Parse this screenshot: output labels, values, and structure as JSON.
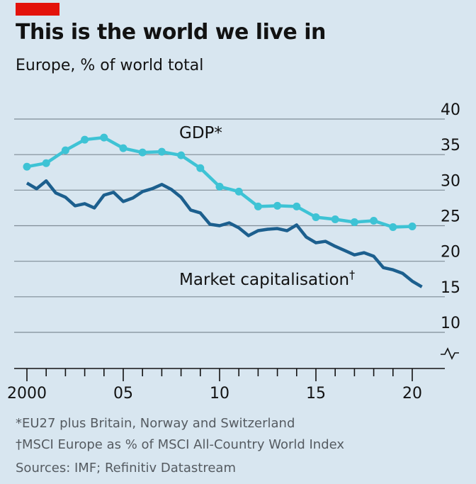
{
  "header": {
    "title": "This is the world we live in",
    "subtitle": "Europe, % of world total"
  },
  "footnotes": [
    "*EU27 plus Britain, Norway and Switzerland",
    "†MSCI Europe as % of MSCI All-Country World Index",
    "Sources: IMF; Refinitiv Datastream"
  ],
  "colors": {
    "background": "#d8e6f0",
    "gdp": "#3ec3d5",
    "market_cap": "#1c5f8e",
    "grid": "#7f8c96",
    "brand_red": "#e3120b"
  },
  "chart_data": {
    "type": "line",
    "title": "This is the world we live in",
    "subtitle": "Europe, % of world total",
    "xlim": [
      2000,
      2020
    ],
    "ylim": [
      5,
      40
    ],
    "y_axis_side": "right",
    "y_axis_break": true,
    "grid": true,
    "x_ticks": [
      {
        "value": 2000,
        "label": "2000"
      },
      {
        "value": 2005,
        "label": "05"
      },
      {
        "value": 2010,
        "label": "10"
      },
      {
        "value": 2015,
        "label": "15"
      },
      {
        "value": 2020,
        "label": "20"
      }
    ],
    "y_ticks": [
      10,
      15,
      20,
      25,
      30,
      35,
      40
    ],
    "series": [
      {
        "name": "GDP*",
        "style": "line-with-markers",
        "x": [
          2000,
          2001,
          2002,
          2003,
          2004,
          2005,
          2006,
          2007,
          2008,
          2009,
          2010,
          2011,
          2012,
          2013,
          2014,
          2015,
          2016,
          2017,
          2018,
          2019,
          2020
        ],
        "y": [
          33.3,
          33.8,
          35.6,
          37.1,
          37.4,
          35.9,
          35.3,
          35.4,
          34.9,
          33.1,
          30.5,
          29.8,
          27.7,
          27.8,
          27.7,
          26.2,
          25.9,
          25.5,
          25.7,
          24.8,
          24.9
        ]
      },
      {
        "name": "Market capitalisation†",
        "style": "line",
        "x": [
          2000,
          2000.5,
          2001,
          2001.5,
          2002,
          2002.5,
          2003,
          2003.5,
          2004,
          2004.5,
          2005,
          2005.5,
          2006,
          2006.5,
          2007,
          2007.5,
          2008,
          2008.5,
          2009,
          2009.5,
          2010,
          2010.5,
          2011,
          2011.5,
          2012,
          2012.5,
          2013,
          2013.5,
          2014,
          2014.5,
          2015,
          2015.5,
          2016,
          2016.5,
          2017,
          2017.5,
          2018,
          2018.5,
          2019,
          2019.5,
          2020,
          2020.5
        ],
        "y": [
          31.0,
          30.2,
          31.3,
          29.6,
          29.0,
          27.8,
          28.1,
          27.5,
          29.3,
          29.7,
          28.4,
          28.9,
          29.8,
          30.2,
          30.8,
          30.1,
          29.0,
          27.2,
          26.8,
          25.2,
          25.0,
          25.4,
          24.7,
          23.6,
          24.3,
          24.5,
          24.6,
          24.3,
          25.1,
          23.4,
          22.6,
          22.8,
          22.1,
          21.5,
          20.9,
          21.2,
          20.7,
          19.1,
          18.8,
          18.3,
          17.2,
          16.4
        ]
      }
    ],
    "annotations": [
      {
        "text": "GDP*",
        "series": 0
      },
      {
        "text": "Market capitalisation",
        "dagger": "†",
        "series": 1
      }
    ]
  }
}
